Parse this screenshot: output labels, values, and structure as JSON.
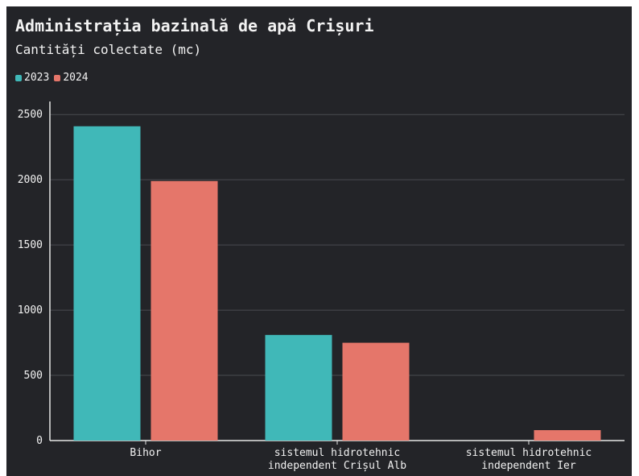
{
  "title": "Administrația bazinală de apă Crișuri",
  "subtitle": "Cantități colectate (mc)",
  "colors": {
    "background": "#232428",
    "grid": "#4a4b50",
    "axis": "#e6e6e6",
    "text": "#f2f2f2"
  },
  "chart_data": {
    "type": "bar",
    "categories": [
      [
        "Bihor"
      ],
      [
        "sistemul hidrotehnic",
        "independent Crișul Alb"
      ],
      [
        "sistemul hidrotehnic",
        "independent Ier"
      ]
    ],
    "series": [
      {
        "name": "2023",
        "color": "#40b8b8",
        "values": [
          2410,
          810,
          0
        ]
      },
      {
        "name": "2024",
        "color": "#e5766a",
        "values": [
          1990,
          750,
          80
        ]
      }
    ],
    "ylim": [
      0,
      2600
    ],
    "yticks": [
      "0",
      "500",
      "1000",
      "1500",
      "2000",
      "2500"
    ],
    "grid": true,
    "legend_position": "top-left"
  }
}
